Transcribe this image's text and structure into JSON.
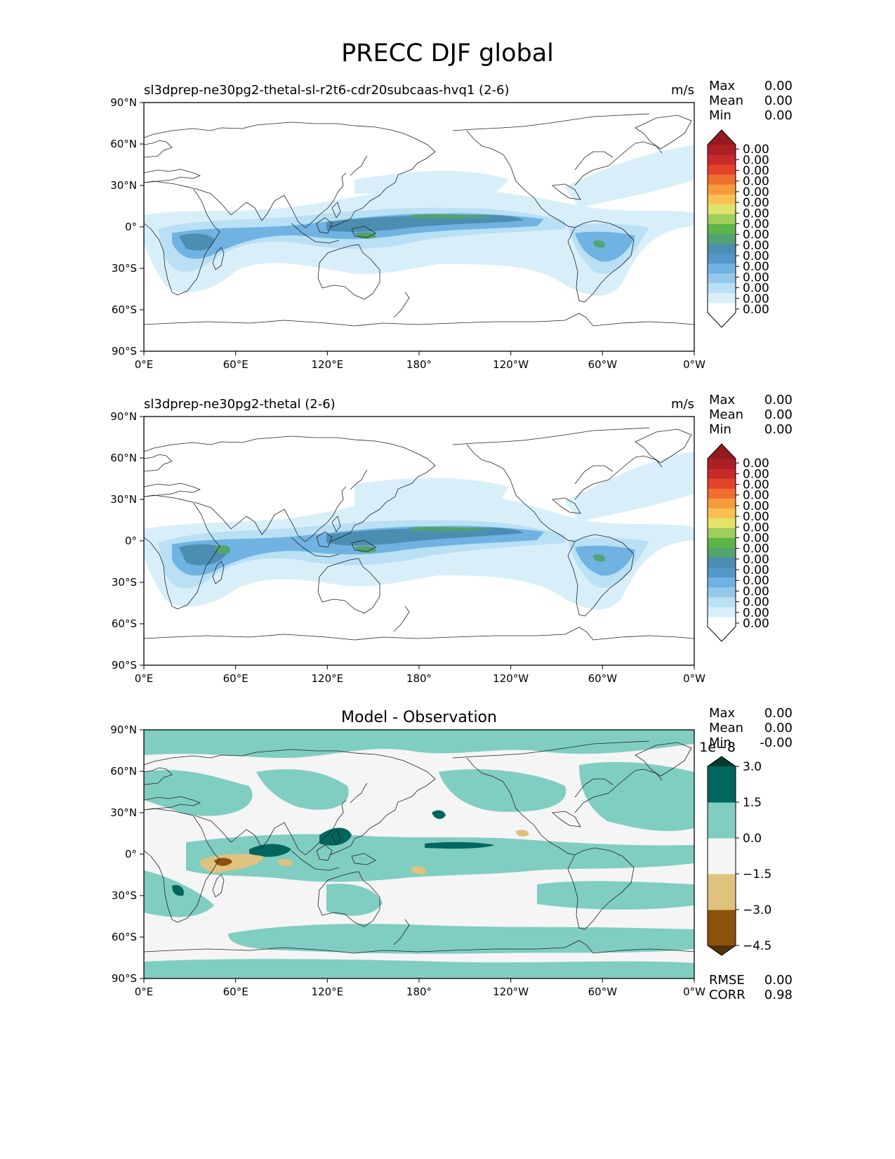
{
  "title": "PRECC DJF global",
  "x_ticks": [
    "0°E",
    "60°E",
    "120°E",
    "180°",
    "120°W",
    "60°W",
    "0°W"
  ],
  "y_ticks": [
    "90°N",
    "60°N",
    "30°N",
    "0°",
    "30°S",
    "60°S",
    "90°S"
  ],
  "panels": [
    {
      "name": "test",
      "title_left": "sl3dprep-ne30pg2-thetal-sl-r2t6-cdr20subcaas-hvq1 (2-6)",
      "title_center": "",
      "units": "m/s",
      "stats": [
        {
          "label": "Max",
          "value": "0.00"
        },
        {
          "label": "Mean",
          "value": "0.00"
        },
        {
          "label": "Min",
          "value": "0.00"
        }
      ],
      "colorbar": {
        "colors": [
          "#ffffff",
          "#d8eff9",
          "#b9e0f4",
          "#95c9ec",
          "#70b3e2",
          "#5497c9",
          "#4c8eb2",
          "#53a26f",
          "#5db54a",
          "#9fce5a",
          "#e2e36a",
          "#f9c153",
          "#f59b3e",
          "#ef6f2f",
          "#e2432a",
          "#c72a2a",
          "#ab1f25"
        ],
        "over_color": "#931a1e",
        "tick_labels": [
          "0.00",
          "0.00",
          "0.00",
          "0.00",
          "0.00",
          "0.00",
          "0.00",
          "0.00",
          "0.00",
          "0.00",
          "0.00",
          "0.00",
          "0.00",
          "0.00",
          "0.00",
          "0.00"
        ],
        "exponent": ""
      },
      "footer": []
    },
    {
      "name": "reference",
      "title_left": "sl3dprep-ne30pg2-thetal (2-6)",
      "title_center": "",
      "units": "m/s",
      "stats": [
        {
          "label": "Max",
          "value": "0.00"
        },
        {
          "label": "Mean",
          "value": "0.00"
        },
        {
          "label": "Min",
          "value": "0.00"
        }
      ],
      "colorbar": {
        "colors": [
          "#ffffff",
          "#d8eff9",
          "#b9e0f4",
          "#95c9ec",
          "#70b3e2",
          "#5497c9",
          "#4c8eb2",
          "#53a26f",
          "#5db54a",
          "#9fce5a",
          "#e2e36a",
          "#f9c153",
          "#f59b3e",
          "#ef6f2f",
          "#e2432a",
          "#c72a2a",
          "#ab1f25"
        ],
        "over_color": "#931a1e",
        "tick_labels": [
          "0.00",
          "0.00",
          "0.00",
          "0.00",
          "0.00",
          "0.00",
          "0.00",
          "0.00",
          "0.00",
          "0.00",
          "0.00",
          "0.00",
          "0.00",
          "0.00",
          "0.00",
          "0.00"
        ],
        "exponent": ""
      },
      "footer": []
    },
    {
      "name": "difference",
      "title_left": "",
      "title_center": "Model - Observation",
      "units": "",
      "stats": [
        {
          "label": "Max",
          "value": "0.00"
        },
        {
          "label": "Mean",
          "value": "0.00"
        },
        {
          "label": "Min",
          "value": "-0.00"
        }
      ],
      "colorbar": {
        "colors": [
          "#8c510a",
          "#dfc27d",
          "#f5f5f5",
          "#80cdc1",
          "#01665e"
        ],
        "over_color": "#003c30",
        "under_color": "#543005",
        "tick_labels": [
          "−4.5",
          "−3.0",
          "−1.5",
          "0.0",
          "1.5",
          "3.0"
        ],
        "exponent": "1e−8"
      },
      "footer": [
        {
          "label": "RMSE",
          "value": "0.00"
        },
        {
          "label": "CORR",
          "value": "0.98"
        }
      ]
    }
  ],
  "chart_data": [
    {
      "type": "heatmap",
      "title": "sl3dprep-ne30pg2-thetal-sl-r2t6-cdr20subcaas-hvq1 (2-6)",
      "variable": "PRECC",
      "season": "DJF",
      "region": "global",
      "units": "m/s",
      "projection": "PlateCarree",
      "xlim": [
        0,
        360
      ],
      "ylim": [
        -90,
        90
      ],
      "stats": {
        "Max": 0.0,
        "Mean": 0.0,
        "Min": 0.0
      },
      "colorbar": {
        "extend": "both",
        "levels": 16,
        "tick_labels_all": "0.00"
      }
    },
    {
      "type": "heatmap",
      "title": "sl3dprep-ne30pg2-thetal (2-6)",
      "variable": "PRECC",
      "season": "DJF",
      "region": "global",
      "units": "m/s",
      "projection": "PlateCarree",
      "xlim": [
        0,
        360
      ],
      "ylim": [
        -90,
        90
      ],
      "stats": {
        "Max": 0.0,
        "Mean": 0.0,
        "Min": 0.0
      },
      "colorbar": {
        "extend": "both",
        "levels": 16,
        "tick_labels_all": "0.00"
      }
    },
    {
      "type": "heatmap",
      "title": "Model - Observation",
      "projection": "PlateCarree",
      "xlim": [
        0,
        360
      ],
      "ylim": [
        -90,
        90
      ],
      "stats": {
        "Max": 0.0,
        "Mean": 0.0,
        "Min": -0.0,
        "RMSE": 0.0,
        "CORR": 0.98
      },
      "colorbar": {
        "extend": "both",
        "scale": "1e-8",
        "levels": [
          -4.5,
          -3.0,
          -1.5,
          0.0,
          1.5,
          3.0
        ]
      }
    }
  ]
}
